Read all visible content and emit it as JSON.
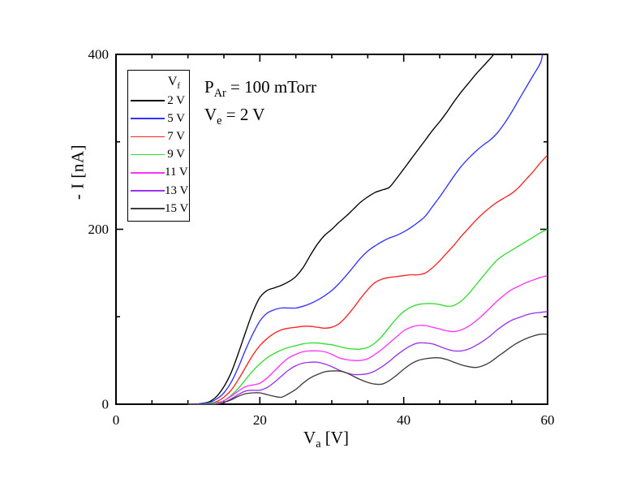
{
  "figure": {
    "background": "#ffffff",
    "y_axis_label": "- I [nA]",
    "x_axis_label": {
      "main": "V",
      "sub": "a",
      "rest": " [V]"
    },
    "annotations": [
      {
        "prefix": "P",
        "sub": "Ar",
        "rest": " = 100 mTorr"
      },
      {
        "prefix": "V",
        "sub": "e",
        "rest": " = 2 V"
      }
    ],
    "legend_title": {
      "main": "V",
      "sub": "f"
    },
    "x_axis": {
      "min": 0,
      "max": 60,
      "major_ticks": [
        0,
        20,
        40,
        60
      ],
      "tick_labels": [
        "0",
        "20",
        "40",
        "60"
      ],
      "minor_step": 5
    },
    "y_axis": {
      "min": 0,
      "max": 400,
      "major_ticks": [
        0,
        200,
        400
      ],
      "tick_labels": [
        "0",
        "200",
        "400"
      ],
      "minor_step": 100
    },
    "frame_color": "#000000"
  },
  "chart_data": {
    "type": "line",
    "title": "",
    "xlabel": "V_a [V]",
    "ylabel": "- I [nA]",
    "xlim": [
      0,
      60
    ],
    "ylim": [
      0,
      400
    ],
    "grid": false,
    "legend_position": "upper-left-inside",
    "series": [
      {
        "label": "2 V",
        "color": "#000000",
        "x": [
          10,
          11,
          12,
          13,
          14,
          15,
          16,
          17,
          18,
          19,
          20,
          21,
          22,
          23,
          24,
          25,
          26,
          27,
          28,
          29,
          30,
          31,
          32,
          33,
          34,
          35,
          36,
          37,
          38,
          39,
          40,
          41,
          42,
          43,
          44,
          45,
          46,
          47,
          48,
          49,
          50,
          51,
          52,
          52.5
        ],
        "y": [
          0,
          0,
          1,
          3,
          9,
          20,
          36,
          58,
          82,
          105,
          122,
          130,
          133,
          136,
          140,
          146,
          156,
          170,
          183,
          193,
          200,
          208,
          215,
          223,
          231,
          237,
          242,
          245,
          248,
          258,
          269,
          280,
          291,
          302,
          313,
          323,
          334,
          346,
          357,
          367,
          377,
          386,
          395,
          400
        ]
      },
      {
        "label": "5 V",
        "color": "#3333ff",
        "x": [
          10,
          11,
          12,
          13,
          14,
          15,
          16,
          17,
          18,
          19,
          20,
          21,
          22,
          23,
          24,
          25,
          26,
          27,
          28,
          29,
          30,
          31,
          32,
          33,
          34,
          35,
          36,
          37,
          38,
          39,
          40,
          41,
          42,
          43,
          44,
          45,
          46,
          47,
          48,
          49,
          50,
          51,
          52,
          53,
          54,
          55,
          56,
          57,
          58,
          59,
          59.3
        ],
        "y": [
          0,
          0,
          1,
          2,
          6,
          13,
          25,
          42,
          62,
          80,
          95,
          104,
          108,
          110,
          110,
          110,
          112,
          115,
          119,
          124,
          130,
          138,
          147,
          157,
          167,
          175,
          181,
          186,
          190,
          193,
          197,
          202,
          208,
          215,
          226,
          237,
          249,
          261,
          272,
          281,
          289,
          296,
          302,
          310,
          321,
          334,
          348,
          362,
          376,
          390,
          400
        ]
      },
      {
        "label": "7 V",
        "color": "#ff2222",
        "x": [
          10,
          11,
          12,
          13,
          14,
          15,
          16,
          17,
          18,
          19,
          20,
          21,
          22,
          23,
          24,
          25,
          26,
          27,
          28,
          29,
          30,
          31,
          32,
          33,
          34,
          35,
          36,
          37,
          38,
          39,
          40,
          41,
          42,
          43,
          44,
          45,
          46,
          47,
          48,
          49,
          50,
          51,
          52,
          53,
          54,
          55,
          56,
          57,
          58,
          59,
          60
        ],
        "y": [
          0,
          0,
          0,
          1,
          3,
          8,
          16,
          28,
          42,
          56,
          67,
          75,
          81,
          85,
          87,
          88,
          89,
          89,
          88,
          87,
          88,
          92,
          100,
          110,
          121,
          131,
          139,
          143,
          145,
          146,
          147,
          148,
          148,
          150,
          156,
          164,
          173,
          182,
          192,
          201,
          210,
          218,
          225,
          231,
          236,
          241,
          248,
          257,
          266,
          276,
          285
        ]
      },
      {
        "label": "9 V",
        "color": "#33dd33",
        "x": [
          10,
          11,
          12,
          13,
          14,
          15,
          16,
          17,
          18,
          19,
          20,
          21,
          22,
          23,
          24,
          25,
          26,
          27,
          28,
          29,
          30,
          31,
          32,
          33,
          34,
          35,
          36,
          37,
          38,
          39,
          40,
          41,
          42,
          43,
          44,
          45,
          46,
          47,
          48,
          49,
          50,
          51,
          52,
          53,
          54,
          55,
          56,
          57,
          58,
          59,
          60
        ],
        "y": [
          0,
          0,
          0,
          1,
          2,
          4,
          10,
          18,
          28,
          38,
          46,
          53,
          58,
          62,
          65,
          67,
          69,
          70,
          70,
          69,
          68,
          66,
          64,
          63,
          63,
          65,
          70,
          78,
          88,
          98,
          106,
          111,
          114,
          115,
          115,
          114,
          112,
          113,
          118,
          126,
          136,
          146,
          156,
          165,
          171,
          176,
          181,
          186,
          191,
          196,
          200
        ]
      },
      {
        "label": "11 V",
        "color": "#ff33ff",
        "x": [
          10,
          11,
          12,
          13,
          14,
          15,
          16,
          17,
          18,
          19,
          20,
          21,
          22,
          23,
          24,
          25,
          26,
          27,
          28,
          29,
          30,
          31,
          32,
          33,
          34,
          35,
          36,
          37,
          38,
          39,
          40,
          41,
          42,
          43,
          44,
          45,
          46,
          47,
          48,
          49,
          50,
          51,
          52,
          53,
          54,
          55,
          56,
          57,
          58,
          59,
          60
        ],
        "y": [
          0,
          0,
          0,
          0,
          1,
          4,
          9,
          15,
          20,
          22,
          24,
          30,
          38,
          46,
          53,
          57,
          60,
          61,
          61,
          60,
          57,
          53,
          51,
          50,
          50,
          52,
          57,
          63,
          70,
          77,
          84,
          88,
          90,
          90,
          88,
          86,
          84,
          83,
          85,
          89,
          95,
          102,
          110,
          118,
          125,
          131,
          135,
          139,
          142,
          145,
          147
        ]
      },
      {
        "label": "13 V",
        "color": "#9933ee",
        "x": [
          10,
          11,
          12,
          13,
          14,
          15,
          16,
          17,
          18,
          19,
          20,
          21,
          22,
          23,
          24,
          25,
          26,
          27,
          28,
          29,
          30,
          31,
          32,
          33,
          34,
          35,
          36,
          37,
          38,
          39,
          40,
          41,
          42,
          43,
          44,
          45,
          46,
          47,
          48,
          49,
          50,
          51,
          52,
          53,
          54,
          55,
          56,
          57,
          58,
          59,
          60
        ],
        "y": [
          0,
          0,
          0,
          0,
          0,
          2,
          6,
          11,
          15,
          16,
          16,
          19,
          25,
          32,
          39,
          44,
          47,
          48,
          48,
          46,
          43,
          39,
          36,
          34,
          34,
          35,
          38,
          43,
          49,
          56,
          62,
          67,
          70,
          70,
          69,
          66,
          63,
          61,
          61,
          63,
          67,
          72,
          78,
          85,
          91,
          96,
          99,
          102,
          104,
          105,
          106
        ]
      },
      {
        "label": "15 V",
        "color": "#3d3d3d",
        "x": [
          10,
          11,
          12,
          13,
          14,
          15,
          16,
          17,
          18,
          19,
          20,
          21,
          22,
          23,
          24,
          25,
          26,
          27,
          28,
          29,
          30,
          31,
          32,
          33,
          34,
          35,
          36,
          37,
          38,
          39,
          40,
          41,
          42,
          43,
          44,
          45,
          46,
          47,
          48,
          49,
          50,
          51,
          52,
          53,
          54,
          55,
          56,
          57,
          58,
          59,
          60
        ],
        "y": [
          0,
          0,
          0,
          0,
          0,
          2,
          5,
          9,
          12,
          13,
          13,
          11,
          9,
          8,
          12,
          17,
          24,
          30,
          34,
          37,
          38,
          38,
          36,
          32,
          28,
          25,
          23,
          23,
          27,
          33,
          40,
          46,
          50,
          52,
          53,
          53,
          51,
          48,
          45,
          43,
          42,
          44,
          48,
          54,
          60,
          66,
          71,
          75,
          78,
          80,
          80
        ]
      }
    ]
  }
}
